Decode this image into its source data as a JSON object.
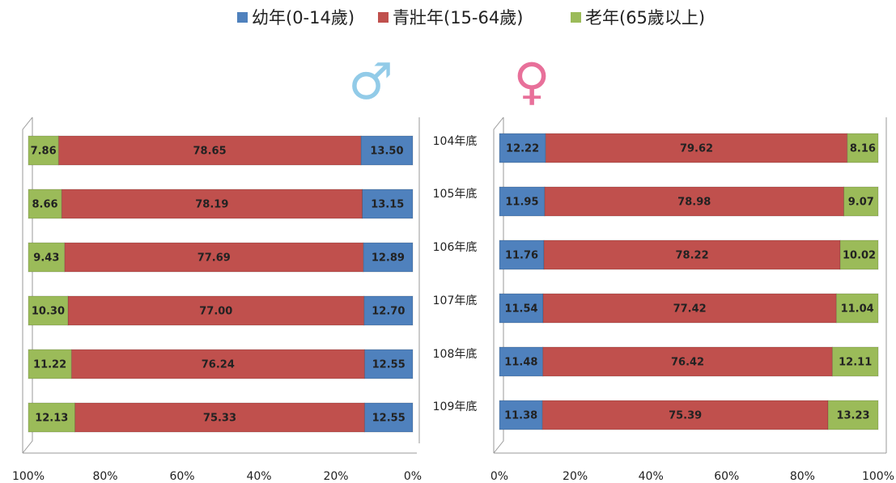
{
  "chart_data": {
    "type": "bar",
    "orientation": "horizontal",
    "stacked": true,
    "categories": [
      "104年底",
      "105年底",
      "106年底",
      "107年底",
      "108年底",
      "109年底"
    ],
    "legend": [
      {
        "name": "幼年(0-14歲)",
        "color": "#4f81bd"
      },
      {
        "name": "青壯年(15-64歲)",
        "color": "#c0504d"
      },
      {
        "name": "老年(65歲以上)",
        "color": "#9bbb59"
      }
    ],
    "panels": [
      {
        "symbol": "♂",
        "symbol_color": "#92cbe8",
        "xlim": [
          100,
          0
        ],
        "xticks": [
          {
            "value": 100,
            "label": "100%"
          },
          {
            "value": 80,
            "label": "80%"
          },
          {
            "value": 60,
            "label": "60%"
          },
          {
            "value": 40,
            "label": "40%"
          },
          {
            "value": 20,
            "label": "20%"
          },
          {
            "value": 0,
            "label": "0%"
          }
        ],
        "series": [
          {
            "values": [
              13.5,
              13.15,
              12.89,
              12.7,
              12.55,
              12.55
            ],
            "value_labels": [
              "13.50",
              "13.15",
              "12.89",
              "12.70",
              "12.55",
              "12.55"
            ]
          },
          {
            "values": [
              78.65,
              78.19,
              77.69,
              77.0,
              76.24,
              75.33
            ],
            "value_labels": [
              "78.65",
              "78.19",
              "77.69",
              "77.00",
              "76.24",
              "75.33"
            ]
          },
          {
            "values": [
              7.86,
              8.66,
              9.43,
              10.3,
              11.22,
              12.13
            ],
            "value_labels": [
              "7.86",
              "8.66",
              "9.43",
              "10.30",
              "11.22",
              "12.13"
            ]
          }
        ]
      },
      {
        "symbol": "♀",
        "symbol_color": "#e8709a",
        "xlim": [
          0,
          100
        ],
        "xticks": [
          {
            "value": 0,
            "label": "0%"
          },
          {
            "value": 20,
            "label": "20%"
          },
          {
            "value": 40,
            "label": "40%"
          },
          {
            "value": 60,
            "label": "60%"
          },
          {
            "value": 80,
            "label": "80%"
          },
          {
            "value": 100,
            "label": "100%"
          }
        ],
        "series": [
          {
            "values": [
              12.22,
              11.95,
              11.76,
              11.54,
              11.48,
              11.38
            ],
            "value_labels": [
              "12.22",
              "11.95",
              "11.76",
              "11.54",
              "11.48",
              "11.38"
            ]
          },
          {
            "values": [
              79.62,
              78.98,
              78.22,
              77.42,
              76.42,
              75.39
            ],
            "value_labels": [
              "79.62",
              "78.98",
              "78.22",
              "77.42",
              "76.42",
              "75.39"
            ]
          },
          {
            "values": [
              8.16,
              9.07,
              10.02,
              11.04,
              12.11,
              13.23
            ],
            "value_labels": [
              "8.16",
              "9.07",
              "10.02",
              "11.04",
              "12.11",
              "13.23"
            ]
          }
        ]
      }
    ]
  }
}
